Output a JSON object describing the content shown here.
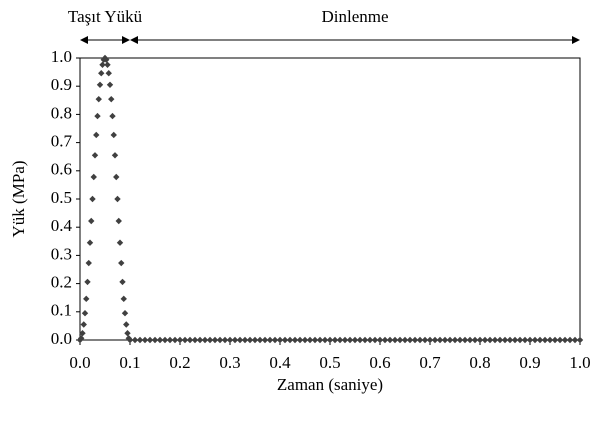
{
  "chart_data": {
    "type": "scatter",
    "x_label": "Zaman (saniye)",
    "y_label": "Yük (MPa)",
    "x": [
      0,
      0.0025,
      0.005,
      0.0075,
      0.01,
      0.0125,
      0.015,
      0.0175,
      0.02,
      0.0225,
      0.025,
      0.0275,
      0.03,
      0.0325,
      0.035,
      0.0375,
      0.04,
      0.0425,
      0.045,
      0.0475,
      0.05,
      0.0525,
      0.055,
      0.0575,
      0.06,
      0.0625,
      0.065,
      0.0675,
      0.07,
      0.0725,
      0.075,
      0.0775,
      0.08,
      0.0825,
      0.085,
      0.0875,
      0.09,
      0.0925,
      0.095,
      0.0975,
      0.1,
      0.11,
      0.12,
      0.13,
      0.14,
      0.15,
      0.16,
      0.17,
      0.18,
      0.19,
      0.2,
      0.21,
      0.22,
      0.23,
      0.24,
      0.25,
      0.26,
      0.27,
      0.28,
      0.29,
      0.3,
      0.31,
      0.32,
      0.33,
      0.34,
      0.35,
      0.36,
      0.37,
      0.38,
      0.39,
      0.4,
      0.41,
      0.42,
      0.43,
      0.44,
      0.45,
      0.46,
      0.47,
      0.48,
      0.49,
      0.5,
      0.51,
      0.52,
      0.53,
      0.54,
      0.55,
      0.56,
      0.57,
      0.58,
      0.59,
      0.6,
      0.61,
      0.62,
      0.63,
      0.64,
      0.65,
      0.66,
      0.67,
      0.68,
      0.69,
      0.7,
      0.71,
      0.72,
      0.73,
      0.74,
      0.75,
      0.76,
      0.77,
      0.78,
      0.79,
      0.8,
      0.81,
      0.82,
      0.83,
      0.84,
      0.85,
      0.86,
      0.87,
      0.88,
      0.89,
      0.9,
      0.91,
      0.92,
      0.93,
      0.94,
      0.95,
      0.96,
      0.97,
      0.98,
      0.99,
      1.0
    ],
    "values": [
      0,
      0.006,
      0.024,
      0.055,
      0.095,
      0.146,
      0.206,
      0.273,
      0.345,
      0.422,
      0.5,
      0.578,
      0.655,
      0.727,
      0.794,
      0.854,
      0.905,
      0.946,
      0.976,
      0.994,
      1,
      0.994,
      0.976,
      0.946,
      0.905,
      0.854,
      0.794,
      0.727,
      0.655,
      0.578,
      0.5,
      0.422,
      0.345,
      0.273,
      0.206,
      0.146,
      0.095,
      0.055,
      0.024,
      0.006,
      0,
      0,
      0,
      0,
      0,
      0,
      0,
      0,
      0,
      0,
      0,
      0,
      0,
      0,
      0,
      0,
      0,
      0,
      0,
      0,
      0,
      0,
      0,
      0,
      0,
      0,
      0,
      0,
      0,
      0,
      0,
      0,
      0,
      0,
      0,
      0,
      0,
      0,
      0,
      0,
      0,
      0,
      0,
      0,
      0,
      0,
      0,
      0,
      0,
      0,
      0,
      0,
      0,
      0,
      0,
      0,
      0,
      0,
      0,
      0,
      0,
      0,
      0,
      0,
      0,
      0,
      0,
      0,
      0,
      0,
      0,
      0,
      0,
      0,
      0,
      0,
      0,
      0,
      0,
      0,
      0,
      0,
      0,
      0,
      0,
      0,
      0,
      0,
      0,
      0,
      0
    ],
    "color": "#404040",
    "marker": "diamond",
    "xlim": [
      0,
      1.0
    ],
    "ylim": [
      0,
      1.0
    ],
    "xticks": [
      {
        "value": 0,
        "label": "0.0"
      },
      0.1,
      0.2,
      0.3,
      0.4,
      0.5,
      0.6,
      0.7,
      0.8,
      0.9,
      {
        "value": 1,
        "label": "1.0"
      }
    ],
    "yticks": [
      {
        "value": 0,
        "label": "0.0"
      },
      0.1,
      0.2,
      0.3,
      0.4,
      0.5,
      0.6,
      0.7,
      0.8,
      0.9,
      {
        "value": 1,
        "label": "1.0"
      }
    ],
    "grid": false,
    "annotations": [
      {
        "text": "Taşıt Yükü",
        "x": [
          0,
          0.1
        ]
      },
      {
        "text": "Dinlenme",
        "x": [
          0.1,
          1.0
        ]
      }
    ]
  }
}
